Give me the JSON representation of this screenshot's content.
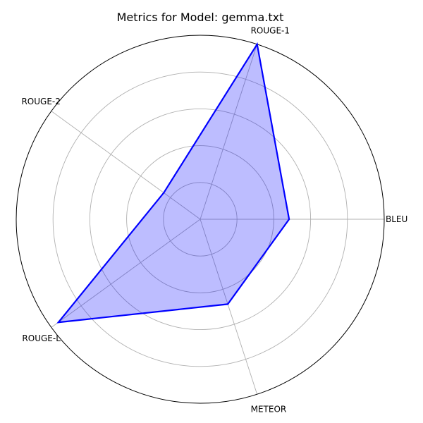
{
  "chart_data": {
    "type": "radar",
    "title": "Metrics for Model: gemma.txt",
    "categories": [
      "BLEU",
      "ROUGE-1",
      "ROUGE-2",
      "ROUGE-L",
      "METEOR"
    ],
    "series": [
      {
        "values": [
          0.483,
          1.0,
          0.245,
          0.953,
          0.485
        ]
      }
    ],
    "rlim": [
      0,
      1.0
    ],
    "rticks": [
      0.2,
      0.4,
      0.6,
      0.8
    ],
    "grid": true,
    "legend": false,
    "colors": {
      "line": "#0000ff",
      "fill": "#0000ff",
      "grid": "#b0b0b0",
      "outer": "#000000"
    }
  }
}
